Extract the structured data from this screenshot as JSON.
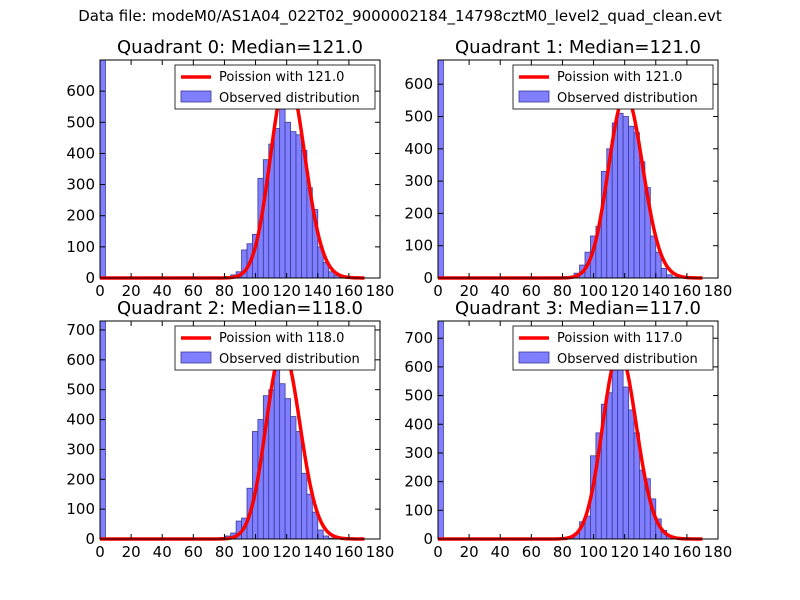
{
  "suptitle": "Data file: modeM0/AS1A04_022T02_9000002184_14798cztM0_level2_quad_clean.evt",
  "colors": {
    "hist_fill": "#7f7fff",
    "hist_edge": "#3a3a9a",
    "poisson_line": "#ff0000"
  },
  "chart_data": [
    {
      "type": "bar",
      "title": "Quadrant 0: Median=121.0",
      "xlabel": "",
      "ylabel": "",
      "xlim": [
        0,
        180
      ],
      "ylim": [
        0,
        700
      ],
      "xticks": [
        0,
        20,
        40,
        60,
        80,
        100,
        120,
        140,
        160,
        180
      ],
      "yticks": [
        0,
        100,
        200,
        300,
        400,
        500,
        600
      ],
      "bin_width": 3.5,
      "bins_start": [
        0,
        80.5,
        84,
        87.5,
        91,
        94.5,
        98,
        101.5,
        105,
        108.5,
        112,
        115.5,
        119,
        122.5,
        126,
        129.5,
        133,
        136.5,
        140,
        143.5,
        147,
        150.5,
        154
      ],
      "counts": [
        700,
        5,
        10,
        20,
        90,
        110,
        140,
        320,
        380,
        430,
        480,
        600,
        500,
        470,
        460,
        410,
        290,
        220,
        100,
        50,
        20,
        8,
        3
      ],
      "legend": [
        "Poission with 121.0",
        "Observed distribution"
      ],
      "legend_loc": "upper-right",
      "poisson_mean": 121.0
    },
    {
      "type": "bar",
      "title": "Quadrant 1: Median=121.0",
      "xlabel": "",
      "ylabel": "",
      "xlim": [
        0,
        180
      ],
      "ylim": [
        0,
        675
      ],
      "xticks": [
        0,
        20,
        40,
        60,
        80,
        100,
        120,
        140,
        160,
        180
      ],
      "yticks": [
        0,
        100,
        200,
        300,
        400,
        500,
        600
      ],
      "bin_width": 3.5,
      "bins_start": [
        0,
        84,
        87.5,
        91,
        94.5,
        98,
        101.5,
        105,
        108.5,
        112,
        115.5,
        119,
        122.5,
        126,
        129.5,
        133,
        136.5,
        140,
        143.5,
        147,
        150.5
      ],
      "counts": [
        675,
        5,
        15,
        40,
        80,
        130,
        160,
        330,
        400,
        480,
        510,
        500,
        470,
        450,
        360,
        280,
        130,
        80,
        30,
        10,
        3
      ],
      "legend": [
        "Poission with 121.0",
        "Observed distribution"
      ],
      "legend_loc": "upper-right",
      "poisson_mean": 121.0
    },
    {
      "type": "bar",
      "title": "Quadrant 2: Median=118.0",
      "xlabel": "",
      "ylabel": "",
      "xlim": [
        0,
        180
      ],
      "ylim": [
        0,
        730
      ],
      "xticks": [
        0,
        20,
        40,
        60,
        80,
        100,
        120,
        140,
        160,
        180
      ],
      "yticks": [
        0,
        100,
        200,
        300,
        400,
        500,
        600,
        700
      ],
      "bin_width": 3.5,
      "bins_start": [
        0,
        77,
        80.5,
        84,
        87.5,
        91,
        94.5,
        98,
        101.5,
        105,
        108.5,
        112,
        115.5,
        119,
        122.5,
        126,
        129.5,
        133,
        136.5,
        140,
        143.5,
        147
      ],
      "counts": [
        730,
        5,
        10,
        20,
        60,
        70,
        170,
        360,
        400,
        480,
        500,
        600,
        520,
        470,
        410,
        360,
        220,
        150,
        90,
        30,
        10,
        3
      ],
      "legend": [
        "Poission with 118.0",
        "Observed distribution"
      ],
      "legend_loc": "upper-right",
      "poisson_mean": 118.0
    },
    {
      "type": "bar",
      "title": "Quadrant 3: Median=117.0",
      "xlabel": "",
      "ylabel": "",
      "xlim": [
        0,
        180
      ],
      "ylim": [
        0,
        760
      ],
      "xticks": [
        0,
        20,
        40,
        60,
        80,
        100,
        120,
        140,
        160,
        180
      ],
      "yticks": [
        0,
        100,
        200,
        300,
        400,
        500,
        600,
        700
      ],
      "bin_width": 3.5,
      "bins_start": [
        0,
        84,
        87.5,
        91,
        94.5,
        98,
        101.5,
        105,
        108.5,
        112,
        115.5,
        119,
        122.5,
        126,
        129.5,
        133,
        136.5,
        140,
        143.5,
        147,
        150.5
      ],
      "counts": [
        760,
        5,
        20,
        60,
        80,
        290,
        370,
        470,
        510,
        590,
        620,
        530,
        450,
        370,
        240,
        210,
        140,
        70,
        30,
        10,
        3
      ],
      "legend": [
        "Poission with 117.0",
        "Observed distribution"
      ],
      "legend_loc": "upper-right",
      "poisson_mean": 117.0
    }
  ]
}
